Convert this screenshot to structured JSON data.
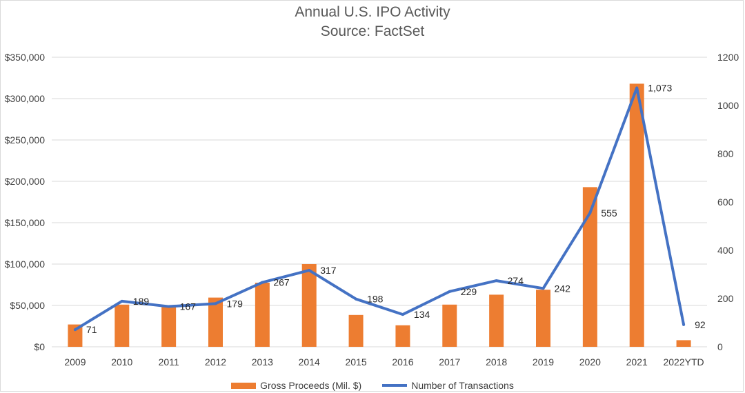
{
  "chart_data": {
    "type": "bar",
    "title": "Annual U.S. IPO Activity",
    "subtitle": "Source: FactSet",
    "categories": [
      "2009",
      "2010",
      "2011",
      "2012",
      "2013",
      "2014",
      "2015",
      "2016",
      "2017",
      "2018",
      "2019",
      "2020",
      "2021",
      "2022YTD"
    ],
    "series": [
      {
        "name": "Gross Proceeds (Mil. $)",
        "type": "bar",
        "axis": "left",
        "color": "#ed7d31",
        "values": [
          27000,
          51000,
          48000,
          59500,
          77500,
          100000,
          38500,
          26000,
          51000,
          63000,
          69000,
          193000,
          318000,
          8000
        ]
      },
      {
        "name": "Number of Transactions",
        "type": "line",
        "axis": "right",
        "color": "#4472c4",
        "values": [
          71,
          189,
          167,
          179,
          267,
          317,
          198,
          134,
          229,
          274,
          242,
          555,
          1073,
          92
        ],
        "labels": [
          "71",
          "189",
          "167",
          "179",
          "267",
          "317",
          "198",
          "134",
          "229",
          "274",
          "242",
          "555",
          "1,073",
          "92"
        ]
      }
    ],
    "y_left": {
      "lim": [
        0,
        350000
      ],
      "ticks": [
        0,
        50000,
        100000,
        150000,
        200000,
        250000,
        300000,
        350000
      ],
      "tick_labels": [
        "$0",
        "$50,000",
        "$100,000",
        "$150,000",
        "$200,000",
        "$250,000",
        "$300,000",
        "$350,000"
      ]
    },
    "y_right": {
      "lim": [
        0,
        1200
      ],
      "ticks": [
        0,
        200,
        400,
        600,
        800,
        1000,
        1200
      ],
      "tick_labels": [
        "0",
        "200",
        "400",
        "600",
        "800",
        "1000",
        "1200"
      ]
    },
    "grid": true,
    "legend_position": "bottom"
  }
}
